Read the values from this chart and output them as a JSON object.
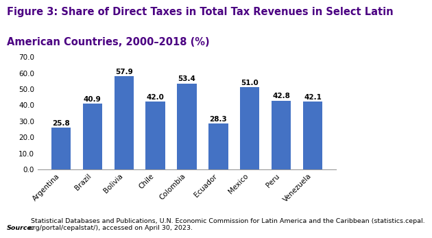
{
  "title_line1": "Figure 3: Share of Direct Taxes in Total Tax Revenues in Select Latin",
  "title_line2": "American Countries, 2000–2018 (%)",
  "title_color": "#4B0082",
  "categories": [
    "Argentina",
    "Brazil",
    "Bolivia",
    "Chile",
    "Colombia",
    "Ecuador",
    "Mexico",
    "Peru",
    "Venezuela"
  ],
  "values": [
    25.8,
    40.9,
    57.9,
    42.0,
    53.4,
    28.3,
    51.0,
    42.8,
    42.1
  ],
  "bar_color": "#4472C4",
  "ylim": [
    0,
    70
  ],
  "yticks": [
    0.0,
    10.0,
    20.0,
    30.0,
    40.0,
    50.0,
    60.0,
    70.0
  ],
  "source_bold": "Source:",
  "source_rest": " Statistical Databases and Publications, U.N. Economic Commission for Latin America and the Caribbean (statistics.cepal.\norg/portal/cepalstat/), accessed on April 30, 2023.",
  "background_color": "#FFFFFF",
  "bar_label_fontsize": 7.5,
  "title_fontsize": 10.5,
  "axis_fontsize": 7.5,
  "source_fontsize": 6.8
}
